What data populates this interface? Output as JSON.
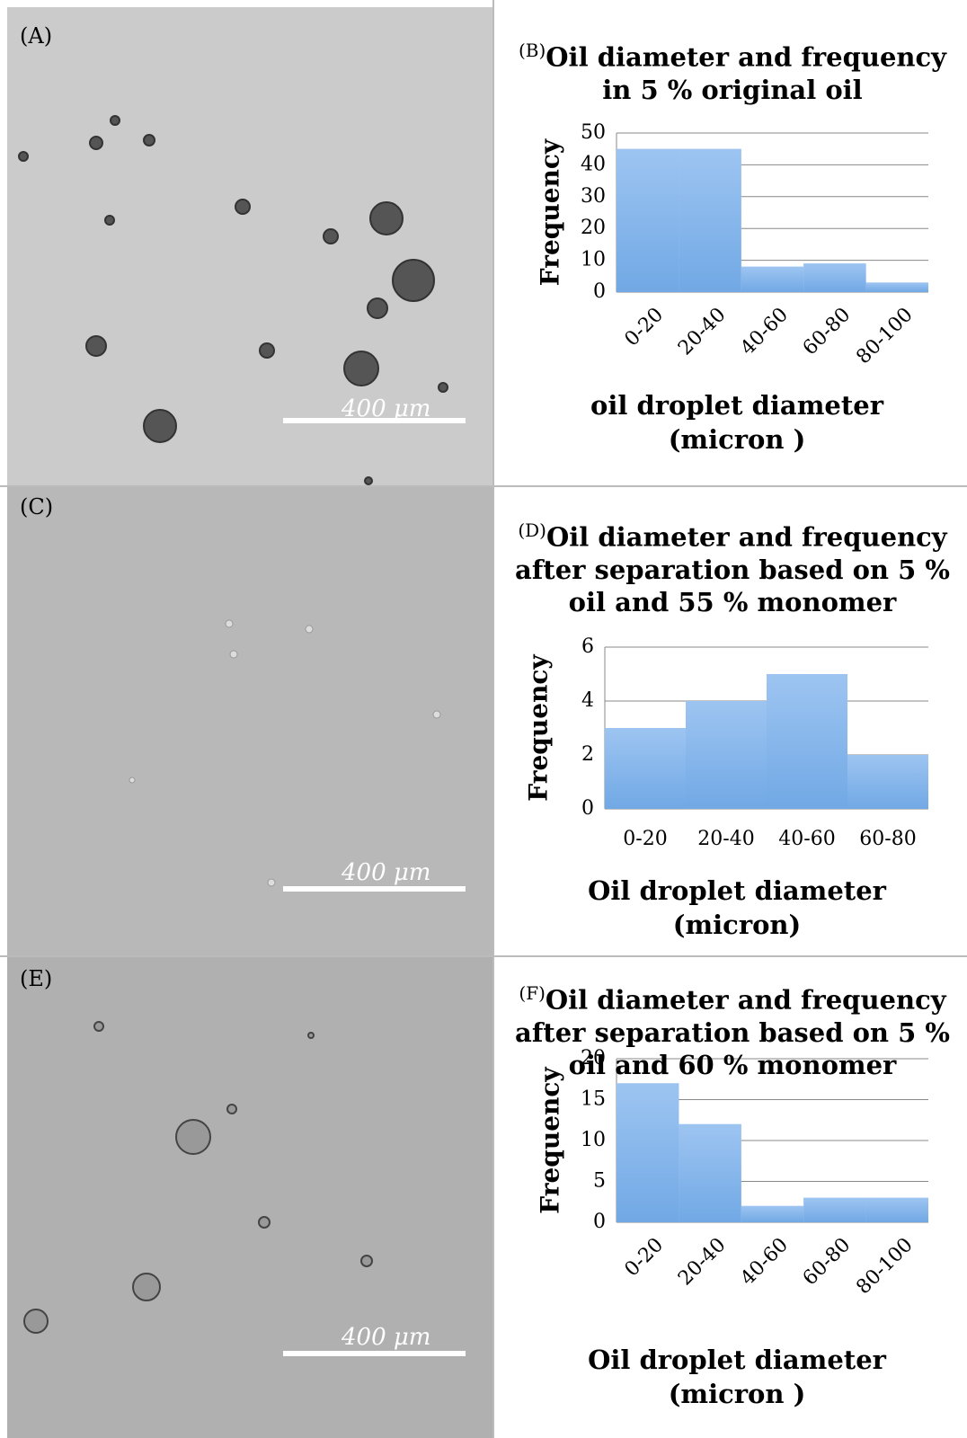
{
  "panels": [
    {
      "label": "(A)",
      "scale_bar": "400 μm"
    },
    {
      "label": "(C)",
      "scale_bar": "400 μm"
    },
    {
      "label": "(E)",
      "scale_bar": "400 μm"
    }
  ],
  "chart_data": [
    {
      "type": "bar",
      "panel_label": "(B)",
      "title": "Oil diameter and frequency in 5 % original oil",
      "x_label": "oil droplet diameter (micron )",
      "y_label": "Frequency",
      "categories": [
        "0-20",
        "20-40",
        "40-60",
        "60-80",
        "80-100"
      ],
      "values": [
        45,
        45,
        8,
        9,
        3
      ],
      "color": "#8cb8ec",
      "ylim": [
        0,
        50
      ],
      "yticks": [
        0,
        10,
        20,
        30,
        40,
        50
      ],
      "grid": true
    },
    {
      "type": "bar",
      "panel_label": "(D)",
      "title": "Oil diameter and frequency after separation based on 5 % oil and 55 % monomer",
      "x_label": "Oil droplet diameter (micron)",
      "y_label": "Frequency",
      "categories": [
        "0-20",
        "20-40",
        "40-60",
        "60-80"
      ],
      "values": [
        3,
        4,
        5,
        2
      ],
      "color": "#8cb8ec",
      "ylim": [
        0,
        6
      ],
      "yticks": [
        0,
        2,
        4,
        6
      ],
      "grid": true
    },
    {
      "type": "bar",
      "panel_label": "(F)",
      "title": "Oil diameter and frequency after separation based on 5 % oil and 60 % monomer",
      "x_label": "Oil droplet diameter (micron )",
      "y_label": "Frequency",
      "categories": [
        "0-20",
        "20-40",
        "40-60",
        "60-80",
        "80-100"
      ],
      "values": [
        17,
        12,
        2,
        3,
        3
      ],
      "color": "#8cb8ec",
      "ylim": [
        0,
        20
      ],
      "yticks": [
        0,
        5,
        10,
        15,
        20
      ],
      "grid": true
    }
  ]
}
